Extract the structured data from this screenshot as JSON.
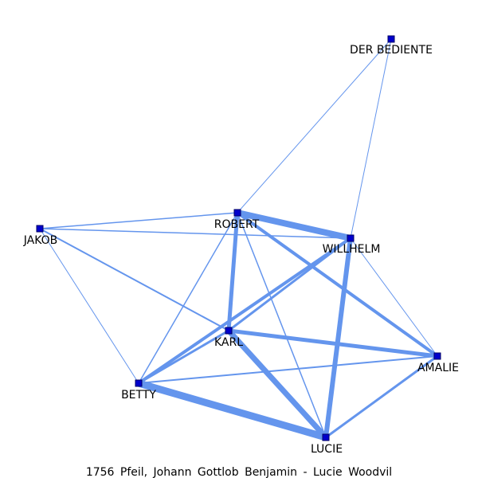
{
  "caption": "1756  Pfeil,  Johann  Gottlob  Benjamin  -  Lucie  Woodvil",
  "colors": {
    "edge": "#6495ed",
    "node_fill": "#0000cc",
    "node_stroke": "#000066",
    "text": "#000000",
    "background": "#ffffff"
  },
  "nodes": [
    {
      "id": "der-bediente",
      "label": "DER BEDIENTE"
    },
    {
      "id": "robert",
      "label": "ROBERT"
    },
    {
      "id": "jakob",
      "label": "JAKOB"
    },
    {
      "id": "willhelm",
      "label": "WILLHELM"
    },
    {
      "id": "karl",
      "label": "KARL"
    },
    {
      "id": "amalie",
      "label": "AMALIE"
    },
    {
      "id": "betty",
      "label": "BETTY"
    },
    {
      "id": "lucie",
      "label": "LUCIE"
    }
  ],
  "edges": [
    {
      "source": "robert",
      "target": "willhelm",
      "weight": 8
    },
    {
      "source": "betty",
      "target": "lucie",
      "weight": 9
    },
    {
      "source": "karl",
      "target": "lucie",
      "weight": 7
    },
    {
      "source": "willhelm",
      "target": "lucie",
      "weight": 6
    },
    {
      "source": "robert",
      "target": "karl",
      "weight": 5
    },
    {
      "source": "karl",
      "target": "amalie",
      "weight": 5
    },
    {
      "source": "betty",
      "target": "willhelm",
      "weight": 4
    },
    {
      "source": "robert",
      "target": "amalie",
      "weight": 4
    },
    {
      "source": "lucie",
      "target": "amalie",
      "weight": 3
    },
    {
      "source": "karl",
      "target": "willhelm",
      "weight": 3
    },
    {
      "source": "betty",
      "target": "karl",
      "weight": 3
    },
    {
      "source": "jakob",
      "target": "karl",
      "weight": 2
    },
    {
      "source": "betty",
      "target": "amalie",
      "weight": 2
    },
    {
      "source": "robert",
      "target": "betty",
      "weight": 1.5
    },
    {
      "source": "robert",
      "target": "lucie",
      "weight": 1.5
    },
    {
      "source": "jakob",
      "target": "robert",
      "weight": 1.5
    },
    {
      "source": "jakob",
      "target": "willhelm",
      "weight": 1.5
    },
    {
      "source": "robert",
      "target": "der-bediente",
      "weight": 1
    },
    {
      "source": "willhelm",
      "target": "der-bediente",
      "weight": 1
    },
    {
      "source": "jakob",
      "target": "betty",
      "weight": 1
    },
    {
      "source": "willhelm",
      "target": "amalie",
      "weight": 1
    }
  ]
}
